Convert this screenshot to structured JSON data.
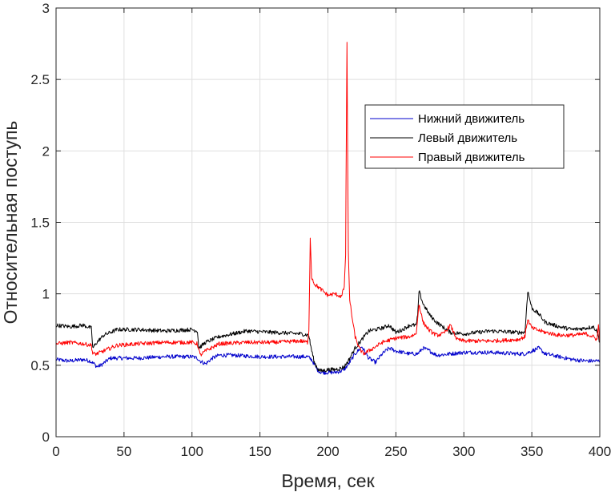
{
  "chart_data": {
    "type": "line",
    "xlabel": "Время, сек",
    "ylabel": "Относительная поступь",
    "xlim": [
      0,
      400
    ],
    "ylim": [
      0,
      3
    ],
    "xticks": [
      "0",
      "50",
      "100",
      "150",
      "200",
      "250",
      "300",
      "350",
      "400"
    ],
    "yticks": [
      "0",
      "0.5",
      "1",
      "1.5",
      "2",
      "2.5",
      "3"
    ],
    "grid": true,
    "legend_position": "top-right",
    "series": [
      {
        "name": "Нижний движитель",
        "color": "#0000cc",
        "x": [
          0,
          10,
          20,
          25,
          28,
          30,
          33,
          40,
          60,
          80,
          100,
          104,
          106,
          110,
          115,
          120,
          130,
          150,
          170,
          185,
          188,
          192,
          195,
          198,
          205,
          210,
          213,
          216,
          220,
          225,
          230,
          235,
          240,
          245,
          250,
          260,
          266,
          270,
          275,
          280,
          290,
          300,
          320,
          340,
          345,
          350,
          355,
          360,
          370,
          380,
          390,
          400
        ],
        "y": [
          0.54,
          0.53,
          0.54,
          0.53,
          0.51,
          0.49,
          0.5,
          0.55,
          0.55,
          0.56,
          0.56,
          0.55,
          0.53,
          0.51,
          0.55,
          0.57,
          0.57,
          0.56,
          0.56,
          0.56,
          0.54,
          0.47,
          0.45,
          0.45,
          0.45,
          0.46,
          0.48,
          0.52,
          0.58,
          0.63,
          0.55,
          0.52,
          0.58,
          0.62,
          0.6,
          0.58,
          0.58,
          0.62,
          0.6,
          0.57,
          0.58,
          0.59,
          0.59,
          0.58,
          0.58,
          0.6,
          0.62,
          0.58,
          0.56,
          0.54,
          0.53,
          0.53
        ]
      },
      {
        "name": "Левый движитель",
        "color": "#000000",
        "x": [
          0,
          10,
          20,
          26,
          27,
          30,
          35,
          45,
          60,
          80,
          100,
          104,
          105,
          110,
          120,
          140,
          160,
          180,
          186,
          187,
          190,
          193,
          195,
          200,
          205,
          210,
          212,
          215,
          220,
          225,
          230,
          240,
          245,
          250,
          255,
          260,
          265,
          266,
          267,
          270,
          275,
          280,
          290,
          300,
          320,
          340,
          345,
          346,
          347,
          350,
          355,
          360,
          370,
          380,
          390,
          395,
          398,
          400
        ],
        "y": [
          0.78,
          0.77,
          0.78,
          0.76,
          0.62,
          0.66,
          0.71,
          0.75,
          0.75,
          0.74,
          0.75,
          0.74,
          0.62,
          0.66,
          0.7,
          0.74,
          0.73,
          0.72,
          0.71,
          0.65,
          0.52,
          0.47,
          0.46,
          0.47,
          0.47,
          0.48,
          0.49,
          0.53,
          0.62,
          0.68,
          0.74,
          0.76,
          0.78,
          0.73,
          0.75,
          0.78,
          0.78,
          0.85,
          1.02,
          0.93,
          0.85,
          0.8,
          0.73,
          0.72,
          0.74,
          0.73,
          0.73,
          0.88,
          1.02,
          0.9,
          0.86,
          0.8,
          0.77,
          0.75,
          0.76,
          0.77,
          0.74,
          0.66
        ]
      },
      {
        "name": "Правый движитель",
        "color": "#ff0000",
        "x": [
          0,
          10,
          20,
          26,
          27,
          30,
          35,
          45,
          60,
          80,
          100,
          104,
          106,
          110,
          120,
          140,
          160,
          180,
          185,
          186,
          187,
          188,
          190,
          195,
          200,
          205,
          210,
          212,
          213,
          214,
          215,
          216,
          218,
          220,
          223,
          226,
          230,
          240,
          250,
          260,
          265,
          267,
          270,
          275,
          280,
          285,
          290,
          295,
          300,
          320,
          340,
          345,
          346,
          347,
          350,
          360,
          370,
          380,
          390,
          395,
          398,
          399,
          400
        ],
        "y": [
          0.65,
          0.66,
          0.65,
          0.64,
          0.58,
          0.58,
          0.6,
          0.64,
          0.65,
          0.66,
          0.66,
          0.65,
          0.57,
          0.6,
          0.65,
          0.66,
          0.66,
          0.67,
          0.66,
          0.74,
          1.39,
          1.12,
          1.07,
          1.03,
          0.99,
          1.0,
          0.98,
          1.05,
          1.27,
          2.76,
          1.3,
          0.96,
          0.82,
          0.7,
          0.62,
          0.58,
          0.6,
          0.66,
          0.69,
          0.7,
          0.72,
          0.93,
          0.8,
          0.74,
          0.71,
          0.72,
          0.78,
          0.68,
          0.67,
          0.67,
          0.68,
          0.7,
          0.77,
          0.82,
          0.76,
          0.73,
          0.71,
          0.71,
          0.72,
          0.7,
          0.68,
          0.78,
          0.66
        ]
      }
    ]
  }
}
